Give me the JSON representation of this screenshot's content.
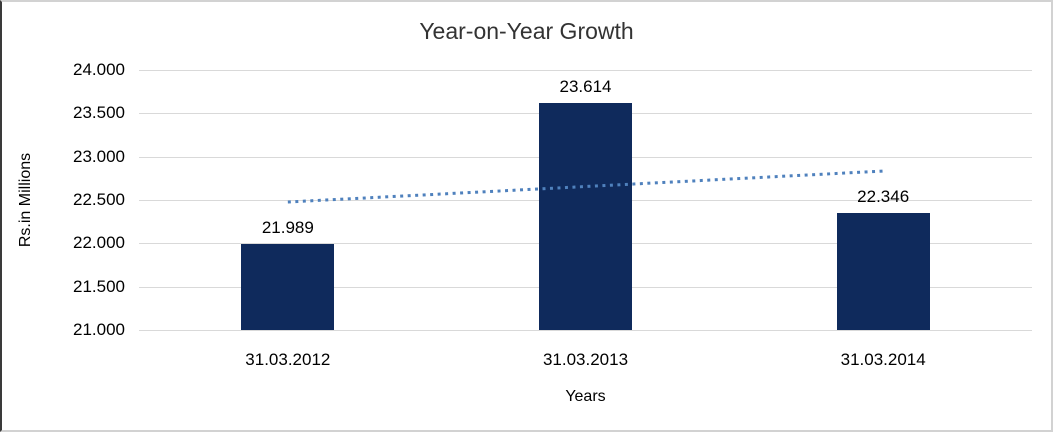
{
  "chart_data": {
    "type": "bar",
    "title": "Year-on-Year Growth",
    "xlabel": "Years",
    "ylabel": "Rs.in Millions",
    "categories": [
      "31.03.2012",
      "31.03.2013",
      "31.03.2014"
    ],
    "series": [
      {
        "name": "Rs.in Millions",
        "values": [
          21.989,
          23.614,
          22.346
        ]
      }
    ],
    "value_labels": [
      "21.989",
      "23.614",
      "22.346"
    ],
    "ylim": [
      21.0,
      24.0
    ],
    "yticks": [
      21.0,
      21.5,
      22.0,
      22.5,
      23.0,
      23.5,
      24.0
    ],
    "ytick_labels": [
      "21.000",
      "21.500",
      "22.000",
      "22.500",
      "23.000",
      "23.500",
      "24.000"
    ],
    "grid": true,
    "legend": "none",
    "bar_color": "#0f2a5c",
    "gridline_color": "#d9d9d9",
    "trendline": {
      "style": "dotted",
      "color": "#4f81bd",
      "start_value": 22.477,
      "end_value": 22.834
    }
  }
}
